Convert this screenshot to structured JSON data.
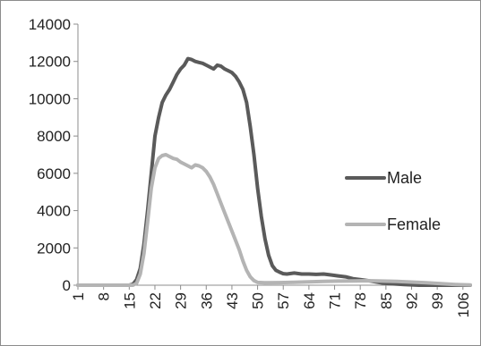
{
  "chart_data": {
    "type": "line",
    "title": "",
    "xlabel": "",
    "ylabel": "",
    "ylim": [
      0,
      14000
    ],
    "yticks": [
      0,
      2000,
      4000,
      6000,
      8000,
      10000,
      12000,
      14000
    ],
    "ytick_labels": [
      "0",
      "2000",
      "4000",
      "6000",
      "8000",
      "10000",
      "12000",
      "14000"
    ],
    "xticks": [
      1,
      8,
      15,
      22,
      29,
      36,
      43,
      50,
      57,
      64,
      71,
      78,
      85,
      92,
      99,
      106
    ],
    "xtick_labels": [
      "1",
      "8",
      "15",
      "22",
      "29",
      "36",
      "43",
      "50",
      "57",
      "64",
      "71",
      "78",
      "85",
      "92",
      "99",
      "106"
    ],
    "xlim": [
      1,
      108
    ],
    "grid": false,
    "legend_position": "right",
    "series": [
      {
        "name": "Male",
        "color": "#5a5a5a",
        "points": [
          [
            1,
            0
          ],
          [
            15,
            0
          ],
          [
            16,
            50
          ],
          [
            17,
            300
          ],
          [
            18,
            900
          ],
          [
            19,
            2200
          ],
          [
            20,
            4000
          ],
          [
            21,
            6000
          ],
          [
            22,
            8000
          ],
          [
            23,
            9000
          ],
          [
            24,
            9800
          ],
          [
            25,
            10200
          ],
          [
            26,
            10500
          ],
          [
            27,
            10900
          ],
          [
            28,
            11300
          ],
          [
            29,
            11600
          ],
          [
            30,
            11800
          ],
          [
            31,
            12150
          ],
          [
            32,
            12100
          ],
          [
            33,
            12000
          ],
          [
            34,
            11950
          ],
          [
            35,
            11900
          ],
          [
            36,
            11800
          ],
          [
            37,
            11700
          ],
          [
            38,
            11600
          ],
          [
            39,
            11800
          ],
          [
            40,
            11750
          ],
          [
            41,
            11600
          ],
          [
            42,
            11500
          ],
          [
            43,
            11400
          ],
          [
            44,
            11200
          ],
          [
            45,
            10900
          ],
          [
            46,
            10500
          ],
          [
            47,
            9800
          ],
          [
            48,
            8500
          ],
          [
            49,
            7000
          ],
          [
            50,
            5200
          ],
          [
            51,
            3700
          ],
          [
            52,
            2500
          ],
          [
            53,
            1600
          ],
          [
            54,
            1050
          ],
          [
            55,
            800
          ],
          [
            56,
            700
          ],
          [
            57,
            620
          ],
          [
            58,
            600
          ],
          [
            60,
            650
          ],
          [
            62,
            600
          ],
          [
            64,
            600
          ],
          [
            66,
            580
          ],
          [
            68,
            600
          ],
          [
            70,
            550
          ],
          [
            72,
            500
          ],
          [
            74,
            450
          ],
          [
            76,
            350
          ],
          [
            78,
            300
          ],
          [
            80,
            250
          ],
          [
            82,
            180
          ],
          [
            84,
            120
          ],
          [
            86,
            80
          ],
          [
            88,
            60
          ],
          [
            90,
            40
          ],
          [
            92,
            20
          ],
          [
            94,
            0
          ],
          [
            108,
            0
          ]
        ]
      },
      {
        "name": "Female",
        "color": "#b4b4b4",
        "points": [
          [
            1,
            0
          ],
          [
            16,
            0
          ],
          [
            17,
            100
          ],
          [
            18,
            600
          ],
          [
            19,
            1700
          ],
          [
            20,
            3400
          ],
          [
            21,
            5200
          ],
          [
            22,
            6300
          ],
          [
            23,
            6800
          ],
          [
            24,
            6950
          ],
          [
            25,
            7000
          ],
          [
            26,
            6900
          ],
          [
            27,
            6800
          ],
          [
            28,
            6750
          ],
          [
            29,
            6600
          ],
          [
            30,
            6500
          ],
          [
            31,
            6400
          ],
          [
            32,
            6300
          ],
          [
            33,
            6450
          ],
          [
            34,
            6400
          ],
          [
            35,
            6300
          ],
          [
            36,
            6100
          ],
          [
            37,
            5800
          ],
          [
            38,
            5400
          ],
          [
            39,
            4900
          ],
          [
            40,
            4400
          ],
          [
            41,
            3900
          ],
          [
            42,
            3400
          ],
          [
            43,
            2900
          ],
          [
            44,
            2400
          ],
          [
            45,
            1900
          ],
          [
            46,
            1300
          ],
          [
            47,
            800
          ],
          [
            48,
            450
          ],
          [
            49,
            250
          ],
          [
            50,
            150
          ],
          [
            52,
            130
          ],
          [
            56,
            140
          ],
          [
            60,
            160
          ],
          [
            64,
            180
          ],
          [
            68,
            200
          ],
          [
            72,
            220
          ],
          [
            76,
            230
          ],
          [
            80,
            240
          ],
          [
            84,
            220
          ],
          [
            88,
            200
          ],
          [
            92,
            170
          ],
          [
            96,
            130
          ],
          [
            100,
            80
          ],
          [
            104,
            40
          ],
          [
            108,
            10
          ]
        ]
      }
    ],
    "legend": [
      {
        "label": "Male",
        "color": "#5a5a5a"
      },
      {
        "label": "Female",
        "color": "#b4b4b4"
      }
    ]
  }
}
